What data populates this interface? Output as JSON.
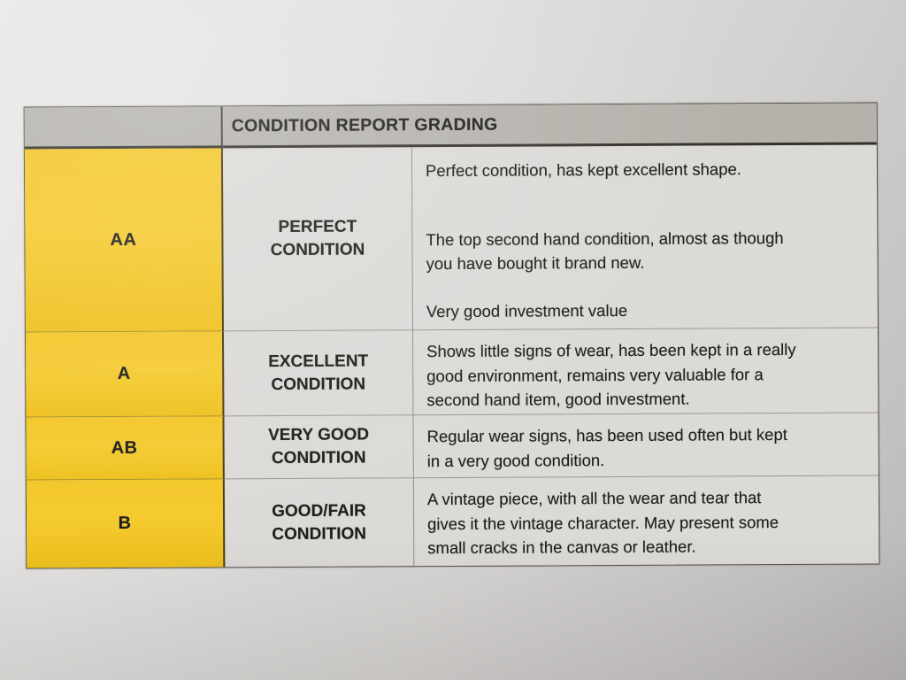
{
  "document": {
    "title": "CONDITION REPORT GRADING",
    "rows": [
      {
        "code": "AA",
        "label": "PERFECT CONDITION",
        "desc_paragraphs": [
          [
            "Perfect condition, has kept excellent shape."
          ],
          [
            "The top second hand condition, almost as though",
            "you have bought it brand new."
          ],
          [
            "Very good investment value"
          ]
        ]
      },
      {
        "code": "A",
        "label": "EXCELLENT CONDITION",
        "desc_paragraphs": [
          [
            "Shows little signs of wear, has been kept in a really",
            "good environment, remains very valuable for a",
            "second hand item, good investment."
          ]
        ]
      },
      {
        "code": "AB",
        "label": "VERY GOOD CONDITION",
        "desc_paragraphs": [
          [
            "Regular wear signs, has been used often but kept",
            "in a very good condition."
          ]
        ]
      },
      {
        "code": "B",
        "label": "GOOD/FAIR CONDITION",
        "desc_paragraphs": [
          [
            "A vintage piece, with all the wear and tear that",
            "gives it the vintage character. May present some",
            "small cracks in the canvas or leather."
          ]
        ]
      }
    ],
    "colors": {
      "grade_yellow": "#f2c526",
      "header_gray": "#b5b2ac",
      "cell_bg": "#dcdad7",
      "paper_light": "#e6e5e3",
      "paper_dark": "#bab8b7",
      "text": "#1e1d1b"
    }
  }
}
